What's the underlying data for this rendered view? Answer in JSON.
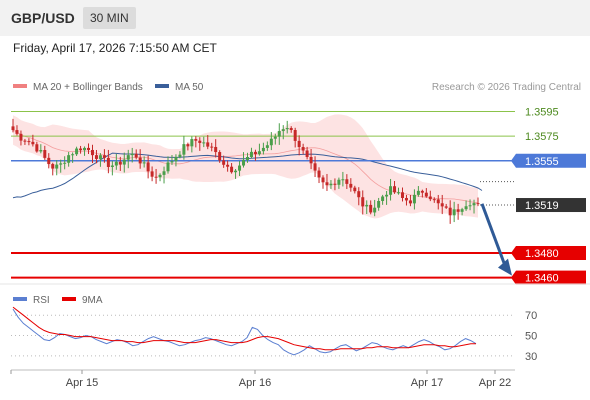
{
  "header": {
    "pair": "GBP/USD",
    "timeframe": "30 MIN"
  },
  "datetime": "Friday, April 17, 2026 7:15:50 AM CET",
  "colors": {
    "bull": "#4a9e4a",
    "bear": "#c62828",
    "ma20": "#f08080",
    "ma50": "#3a5f9a",
    "band_fill": "#fde3e3",
    "resistance_green": "#8bc34a",
    "pivot_blue": "#4d79d8",
    "support_red": "#e60000",
    "arrow": "#2f5a96",
    "rsi": "#5b7fd1",
    "rsi_ma": "#e60000",
    "current_label": "#333333"
  },
  "chart_data": [
    {
      "type": "line",
      "subtype": "candlestick",
      "title": "",
      "x_tick_labels": [
        "Apr 15",
        "Apr 16",
        "Apr 17",
        "Apr 22"
      ],
      "y_range": [
        1.345,
        1.361
      ],
      "legend": {
        "placement": "top-left",
        "items": [
          {
            "name": "MA 20 + Bollinger Bands",
            "color": "#f08080"
          },
          {
            "name": "MA 50",
            "color": "#3a5f9a"
          }
        ]
      },
      "copyright": "Research © 2026 Trading Central",
      "levels": [
        {
          "label": "1.3595",
          "value": 1.3595,
          "kind": "resistance",
          "color": "#8bc34a"
        },
        {
          "label": "1.3575",
          "value": 1.3575,
          "kind": "resistance",
          "color": "#8bc34a"
        },
        {
          "label": "1.3555",
          "value": 1.3555,
          "kind": "pivot",
          "color": "#4d79d8"
        },
        {
          "label": "1.3519",
          "value": 1.3519,
          "kind": "current",
          "color": "#333333"
        },
        {
          "label": "1.3480",
          "value": 1.348,
          "kind": "support",
          "color": "#e60000"
        },
        {
          "label": "1.3460",
          "value": 1.346,
          "kind": "support",
          "color": "#e60000"
        }
      ],
      "forecast": {
        "from": 1.352,
        "to": 1.346
      },
      "key_prices": [
        1.358,
        1.3574,
        1.3572,
        1.3568,
        1.3562,
        1.3554,
        1.3549,
        1.3552,
        1.3559,
        1.3563,
        1.3566,
        1.3564,
        1.356,
        1.3556,
        1.3552,
        1.3551,
        1.3555,
        1.356,
        1.3559,
        1.3552,
        1.3545,
        1.3541,
        1.3548,
        1.3554,
        1.356,
        1.3566,
        1.357,
        1.3572,
        1.3569,
        1.3565,
        1.3559,
        1.3552,
        1.3548,
        1.3551,
        1.3556,
        1.356,
        1.3563,
        1.3567,
        1.3572,
        1.358,
        1.3584,
        1.3576,
        1.3566,
        1.3556,
        1.3546,
        1.3537,
        1.3534,
        1.3538,
        1.3542,
        1.3537,
        1.3529,
        1.352,
        1.3515,
        1.3518,
        1.3526,
        1.3532,
        1.3529,
        1.3524,
        1.3522,
        1.3527,
        1.3531,
        1.3526,
        1.352,
        1.3516,
        1.3512,
        1.3515,
        1.352,
        1.3522,
        1.3518
      ]
    },
    {
      "type": "line",
      "title": "",
      "y_range": [
        20,
        85
      ],
      "y_ticks": [
        70,
        50,
        30
      ],
      "legend": {
        "placement": "top-left",
        "items": [
          {
            "name": "RSI",
            "color": "#5b7fd1"
          },
          {
            "name": "9MA",
            "color": "#e60000"
          }
        ]
      },
      "series": [
        {
          "name": "RSI",
          "values": [
            76,
            68,
            62,
            58,
            54,
            50,
            46,
            45,
            48,
            52,
            51,
            49,
            47,
            48,
            50,
            49,
            46,
            44,
            42,
            44,
            46,
            45,
            43,
            40,
            41,
            44,
            47,
            49,
            47,
            45,
            44,
            42,
            40,
            41,
            43,
            45,
            46,
            48,
            47,
            45,
            43,
            41,
            40,
            42,
            44,
            48,
            58,
            56,
            50,
            46,
            43,
            41,
            36,
            33,
            31,
            33,
            36,
            40,
            37,
            34,
            33,
            34,
            37,
            40,
            41,
            38,
            35,
            37,
            40,
            43,
            42,
            39,
            37,
            36,
            38,
            40,
            38,
            41,
            44,
            46,
            44,
            41,
            39,
            36,
            37,
            40,
            44,
            47,
            45,
            42
          ]
        },
        {
          "name": "9MA",
          "values": [
            78,
            74,
            70,
            66,
            62,
            58,
            55,
            53,
            52,
            51,
            51,
            50,
            49,
            49,
            49,
            49,
            48,
            47,
            46,
            45,
            45,
            45,
            44,
            44,
            43,
            43,
            44,
            45,
            45,
            45,
            45,
            45,
            44,
            43,
            43,
            43,
            44,
            45,
            46,
            46,
            45,
            44,
            43,
            43,
            43,
            44,
            46,
            48,
            49,
            49,
            48,
            47,
            45,
            43,
            41,
            40,
            39,
            38,
            37,
            37,
            36,
            36,
            36,
            37,
            37,
            37,
            37,
            37,
            38,
            38,
            39,
            39,
            39,
            38,
            38,
            38,
            38,
            39,
            40,
            41,
            41,
            41,
            40,
            40,
            39,
            39,
            40,
            41,
            42,
            42
          ]
        }
      ]
    }
  ]
}
